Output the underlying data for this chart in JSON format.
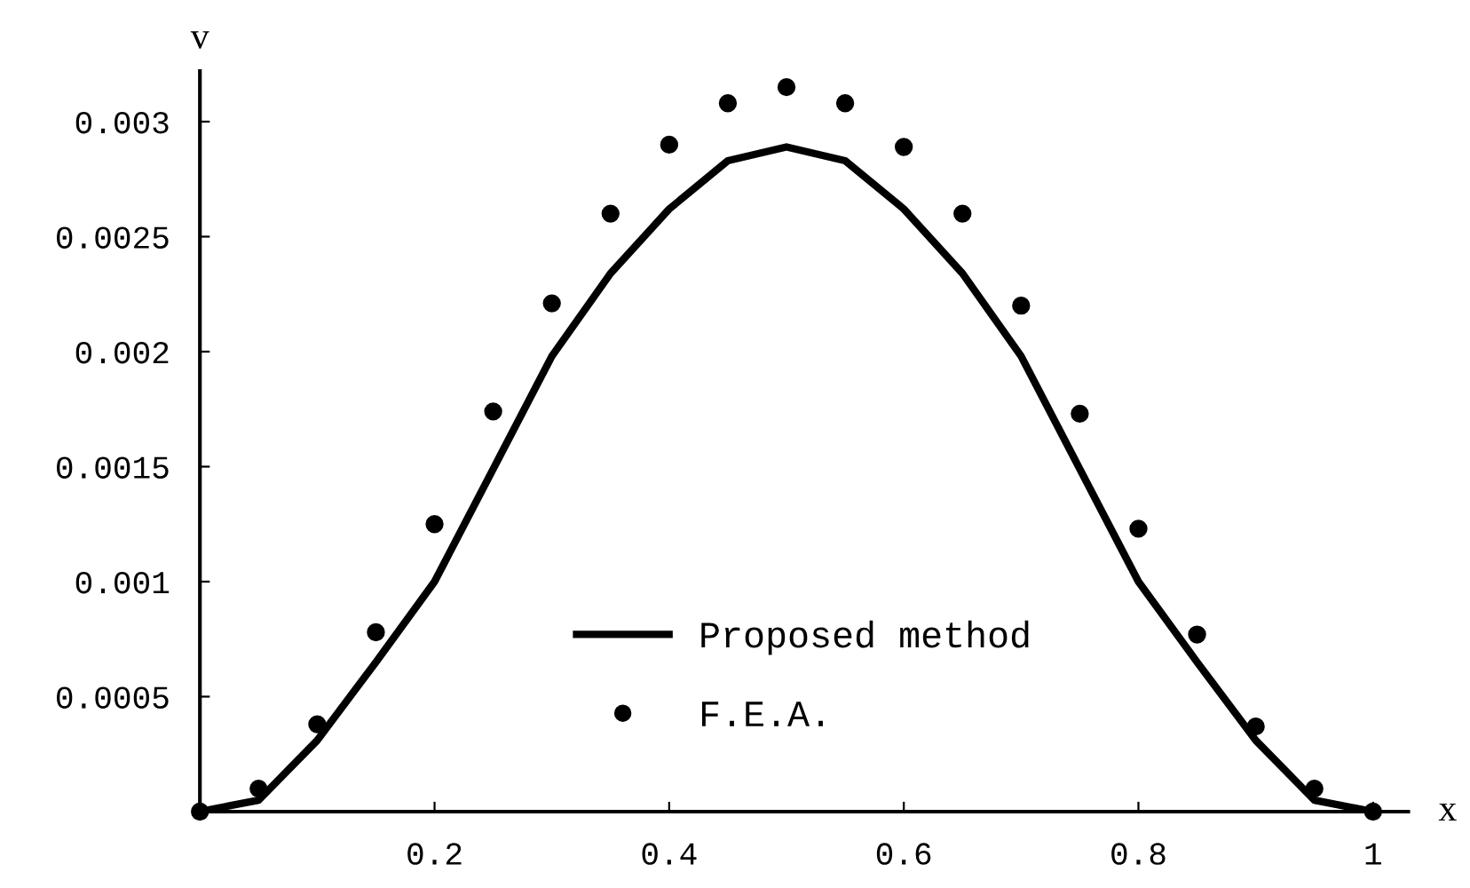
{
  "chart_data": {
    "type": "line",
    "xlabel": "x",
    "ylabel": "v",
    "xlim": [
      0,
      1.03
    ],
    "ylim": [
      0,
      0.00322
    ],
    "xticks": [
      0.2,
      0.4,
      0.6,
      0.8,
      1
    ],
    "yticks": [
      0.0005,
      0.001,
      0.0015,
      0.002,
      0.0025,
      0.003
    ],
    "legend": "bottom",
    "grid": false,
    "series": [
      {
        "name": "Proposed method",
        "color": "#000000",
        "line_style": "solid",
        "marker": "none",
        "x": [
          0,
          0.05,
          0.1,
          0.15,
          0.2,
          0.25,
          0.3,
          0.35,
          0.4,
          0.45,
          0.5,
          0.55,
          0.6,
          0.65,
          0.7,
          0.75,
          0.8,
          0.85,
          0.9,
          0.95,
          1
        ],
        "values": [
          0,
          5e-05,
          0.00031,
          0.00065,
          0.001,
          0.00149,
          0.00198,
          0.00234,
          0.00262,
          0.00283,
          0.00289,
          0.00283,
          0.00262,
          0.00234,
          0.00198,
          0.00149,
          0.001,
          0.00065,
          0.00031,
          5e-05,
          0
        ]
      },
      {
        "name": "F.E.A.",
        "type": "scatter",
        "color": "#000000",
        "marker": "circle",
        "x": [
          0,
          0.05,
          0.1,
          0.15,
          0.2,
          0.25,
          0.3,
          0.35,
          0.4,
          0.45,
          0.5,
          0.55,
          0.6,
          0.65,
          0.7,
          0.75,
          0.8,
          0.85,
          0.9,
          0.95,
          1
        ],
        "values": [
          0,
          0.0001,
          0.00038,
          0.00078,
          0.00125,
          0.00174,
          0.00221,
          0.0026,
          0.0029,
          0.00308,
          0.00315,
          0.00308,
          0.00289,
          0.0026,
          0.0022,
          0.00173,
          0.00123,
          0.00077,
          0.00037,
          0.0001,
          0
        ]
      }
    ]
  }
}
